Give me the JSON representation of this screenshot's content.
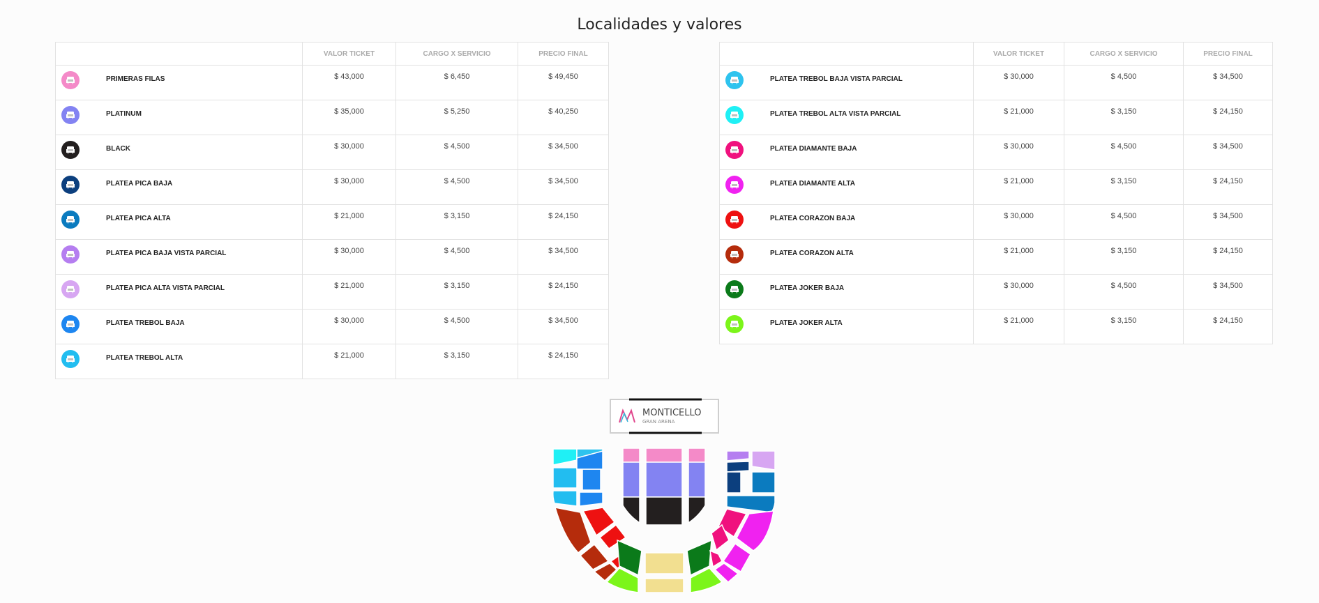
{
  "page": {
    "title": "Localidades y valores"
  },
  "columns": {
    "valor": "VALOR TICKET",
    "cargo": "CARGO X SERVICIO",
    "precio": "PRECIO FINAL"
  },
  "left_rows": [
    {
      "name": "PRIMERAS FILAS",
      "valor": "$ 43,000",
      "cargo": "$ 6,450",
      "precio": "$ 49,450",
      "color": "#f48ac8"
    },
    {
      "name": "PLATINUM",
      "valor": "$ 35,000",
      "cargo": "$ 5,250",
      "precio": "$ 40,250",
      "color": "#8383f2"
    },
    {
      "name": "BLACK",
      "valor": "$ 30,000",
      "cargo": "$ 4,500",
      "precio": "$ 34,500",
      "color": "#231f1f"
    },
    {
      "name": "PLATEA PICA BAJA",
      "valor": "$ 30,000",
      "cargo": "$ 4,500",
      "precio": "$ 34,500",
      "color": "#0c3f7e"
    },
    {
      "name": "PLATEA PICA ALTA",
      "valor": "$ 21,000",
      "cargo": "$ 3,150",
      "precio": "$ 24,150",
      "color": "#0b7bbf"
    },
    {
      "name": "PLATEA PICA BAJA VISTA PARCIAL",
      "valor": "$ 30,000",
      "cargo": "$ 4,500",
      "precio": "$ 34,500",
      "color": "#b57ef0"
    },
    {
      "name": "PLATEA PICA ALTA VISTA PARCIAL",
      "valor": "$ 21,000",
      "cargo": "$ 3,150",
      "precio": "$ 24,150",
      "color": "#d7a6f2"
    },
    {
      "name": "PLATEA TREBOL BAJA",
      "valor": "$ 30,000",
      "cargo": "$ 4,500",
      "precio": "$ 34,500",
      "color": "#1e86f0"
    },
    {
      "name": "PLATEA TREBOL ALTA",
      "valor": "$ 21,000",
      "cargo": "$ 3,150",
      "precio": "$ 24,150",
      "color": "#22bdf0"
    }
  ],
  "right_rows": [
    {
      "name": "PLATEA TREBOL BAJA VISTA PARCIAL",
      "valor": "$ 30,000",
      "cargo": "$ 4,500",
      "precio": "$ 34,500",
      "color": "#2ec3ee"
    },
    {
      "name": "PLATEA TREBOL ALTA VISTA PARCIAL",
      "valor": "$ 21,000",
      "cargo": "$ 3,150",
      "precio": "$ 24,150",
      "color": "#1ff0f5"
    },
    {
      "name": "PLATEA DIAMANTE BAJA",
      "valor": "$ 30,000",
      "cargo": "$ 4,500",
      "precio": "$ 34,500",
      "color": "#f0117e"
    },
    {
      "name": "PLATEA DIAMANTE ALTA",
      "valor": "$ 21,000",
      "cargo": "$ 3,150",
      "precio": "$ 24,150",
      "color": "#f022f0"
    },
    {
      "name": "PLATEA CORAZON BAJA",
      "valor": "$ 30,000",
      "cargo": "$ 4,500",
      "precio": "$ 34,500",
      "color": "#ee1111"
    },
    {
      "name": "PLATEA CORAZON ALTA",
      "valor": "$ 21,000",
      "cargo": "$ 3,150",
      "precio": "$ 24,150",
      "color": "#b52c0c"
    },
    {
      "name": "PLATEA JOKER BAJA",
      "valor": "$ 30,000",
      "cargo": "$ 4,500",
      "precio": "$ 34,500",
      "color": "#0b7a1a"
    },
    {
      "name": "PLATEA JOKER ALTA",
      "valor": "$ 21,000",
      "cargo": "$ 3,150",
      "precio": "$ 24,150",
      "color": "#7cf51a"
    }
  ],
  "map": {
    "brand": "MONTICELLO",
    "subbrand": "GRAN ARENA",
    "colors": {
      "primeras": "#f48ac8",
      "platinum": "#8383f2",
      "black": "#231f1f",
      "pica_baja": "#0c3f7e",
      "pica_alta": "#0b7bbf",
      "pica_baja_vp": "#b57ef0",
      "pica_alta_vp": "#d7a6f2",
      "trebol_baja": "#1e86f0",
      "trebol_alta": "#22bdf0",
      "trebol_baja_vp": "#2ec3ee",
      "trebol_alta_vp": "#1ff0f5",
      "diamante_baja": "#f0117e",
      "diamante_alta": "#f022f0",
      "corazon_baja": "#ee1111",
      "corazon_alta": "#b52c0c",
      "joker_baja": "#0b7a1a",
      "joker_alta": "#7cf51a",
      "general": "#f2df90"
    }
  }
}
